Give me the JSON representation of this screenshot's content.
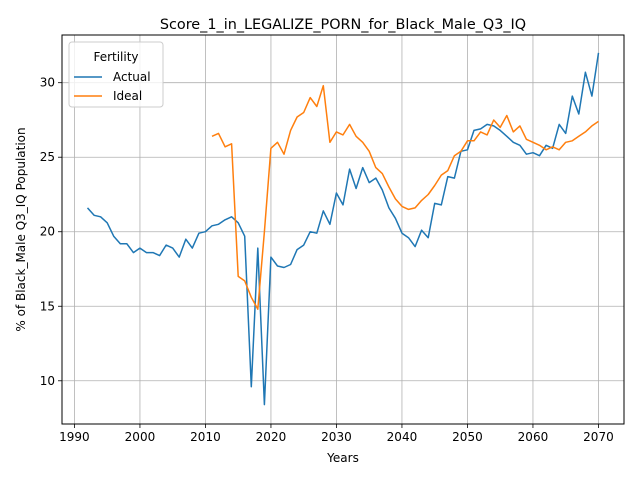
{
  "chart_data": {
    "type": "line",
    "title": "Score_1_in_LEGALIZE_PORN_for_Black_Male_Q3_IQ",
    "xlabel": "Years",
    "ylabel": "% of Black_Male Q3_IQ Population",
    "xlim": [
      1988.1,
      2073.9
    ],
    "ylim": [
      7.1,
      33.2
    ],
    "xticks": [
      1990,
      2000,
      2010,
      2020,
      2030,
      2040,
      2050,
      2060,
      2070
    ],
    "yticks": [
      10,
      15,
      20,
      25,
      30
    ],
    "grid": true,
    "legend": {
      "title": "Fertility",
      "placement": "top-left"
    },
    "series": [
      {
        "name": "Actual",
        "color": "#1f77b4",
        "x": [
          1992,
          1993,
          1994,
          1995,
          1996,
          1997,
          1998,
          1999,
          2000,
          2001,
          2002,
          2003,
          2004,
          2005,
          2006,
          2007,
          2008,
          2009,
          2010,
          2011,
          2012,
          2013,
          2014,
          2015,
          2016,
          2017,
          2018,
          2019,
          2020,
          2021,
          2022,
          2023,
          2024,
          2025,
          2026,
          2027,
          2028,
          2029,
          2030,
          2031,
          2032,
          2033,
          2034,
          2035,
          2036,
          2037,
          2038,
          2039,
          2040,
          2041,
          2042,
          2043,
          2044,
          2045,
          2046,
          2047,
          2048,
          2049,
          2050,
          2051,
          2052,
          2053,
          2054,
          2055,
          2056,
          2057,
          2058,
          2059,
          2060,
          2061,
          2062,
          2063,
          2064,
          2065,
          2066,
          2067,
          2068,
          2069,
          2070
        ],
        "y": [
          21.6,
          21.1,
          21.0,
          20.6,
          19.7,
          19.2,
          19.2,
          18.6,
          18.9,
          18.6,
          18.6,
          18.4,
          19.1,
          18.9,
          18.3,
          19.5,
          18.9,
          19.9,
          20.0,
          20.4,
          20.5,
          20.8,
          21.0,
          20.6,
          19.7,
          9.6,
          18.9,
          8.4,
          18.3,
          17.7,
          17.6,
          17.8,
          18.8,
          19.1,
          20.0,
          19.9,
          21.4,
          20.5,
          22.6,
          21.8,
          24.2,
          22.9,
          24.3,
          23.3,
          23.6,
          22.8,
          21.6,
          20.9,
          19.9,
          19.6,
          19.0,
          20.1,
          19.6,
          21.9,
          21.8,
          23.7,
          23.6,
          25.4,
          25.5,
          26.8,
          26.9,
          27.2,
          27.1,
          26.8,
          26.4,
          26.0,
          25.8,
          25.2,
          25.3,
          25.1,
          25.8,
          25.6,
          27.2,
          26.6,
          29.1,
          27.9,
          30.7,
          29.1,
          32.0
        ]
      },
      {
        "name": "Ideal",
        "color": "#ff7f0e",
        "x": [
          2011,
          2012,
          2013,
          2014,
          2015,
          2016,
          2017,
          2018,
          2019,
          2020,
          2021,
          2022,
          2023,
          2024,
          2025,
          2026,
          2027,
          2028,
          2029,
          2030,
          2031,
          2032,
          2033,
          2034,
          2035,
          2036,
          2037,
          2038,
          2039,
          2040,
          2041,
          2042,
          2043,
          2044,
          2045,
          2046,
          2047,
          2048,
          2049,
          2050,
          2051,
          2052,
          2053,
          2054,
          2055,
          2056,
          2057,
          2058,
          2059,
          2060,
          2061,
          2062,
          2063,
          2064,
          2065,
          2066,
          2067,
          2068,
          2069,
          2070
        ],
        "y": [
          26.4,
          26.6,
          25.7,
          25.9,
          17.0,
          16.7,
          15.6,
          14.8,
          20.0,
          25.6,
          26.0,
          25.2,
          26.8,
          27.7,
          28.0,
          29.0,
          28.4,
          29.8,
          26.0,
          26.7,
          26.5,
          27.2,
          26.4,
          26.0,
          25.4,
          24.3,
          23.9,
          23.0,
          22.2,
          21.7,
          21.5,
          21.6,
          22.1,
          22.5,
          23.1,
          23.8,
          24.1,
          25.1,
          25.4,
          26.1,
          26.1,
          26.7,
          26.5,
          27.5,
          27.0,
          27.8,
          26.7,
          27.1,
          26.2,
          26.0,
          25.8,
          25.5,
          25.7,
          25.5,
          26.0,
          26.1,
          26.4,
          26.7,
          27.1,
          27.4
        ]
      }
    ]
  }
}
